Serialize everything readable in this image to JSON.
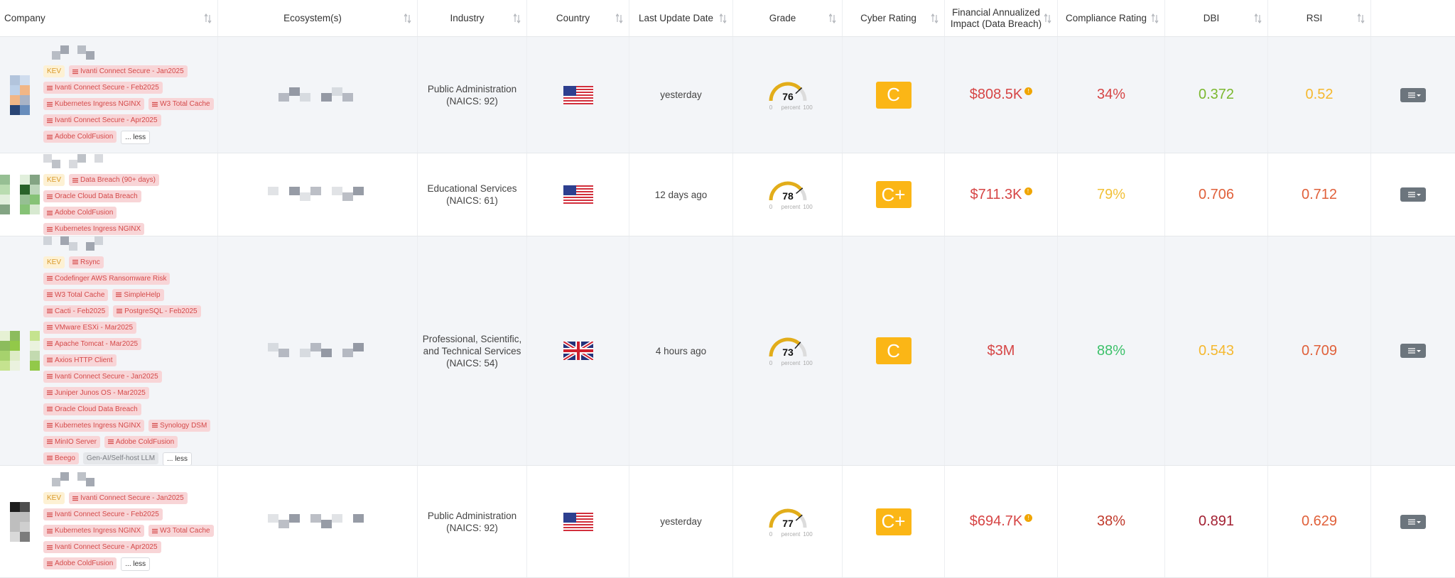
{
  "table": {
    "columns": [
      "Company",
      "Ecosystem(s)",
      "Industry",
      "Country",
      "Last Update Date",
      "Grade",
      "Cyber Rating",
      "Financial Annualized\nImpact (Data Breach)",
      "Compliance Rating",
      "DBI",
      "RSI"
    ],
    "gauge": {
      "min": 0,
      "unit": "percent",
      "max": 100
    },
    "rating_color": "#fbb616",
    "rows": [
      {
        "tags": [
          {
            "text": "KEV",
            "style": "kev"
          },
          {
            "text": "Ivanti Connect Secure - Jan2025",
            "style": "risk"
          },
          {
            "text": "Ivanti Connect Secure - Feb2025",
            "style": "risk"
          },
          {
            "text": "Kubernetes Ingress NGINX",
            "style": "risk"
          },
          {
            "text": "W3 Total Cache",
            "style": "risk"
          },
          {
            "text": "Ivanti Connect Secure - Apr2025",
            "style": "risk"
          },
          {
            "text": "Adobe ColdFusion",
            "style": "risk"
          }
        ],
        "toggle": "... less",
        "industry": "Public Administration\n(NAICS: 92)",
        "flag": "us",
        "updated": "yesterday",
        "grade": 76,
        "cyber": "C",
        "financial": {
          "text": "$808.5K",
          "color": "#d64545",
          "info": true
        },
        "compliance": {
          "text": "34%",
          "color": "#d64545"
        },
        "dbi": {
          "text": "0.372",
          "color": "#7cb82f"
        },
        "rsi": {
          "text": "0.52",
          "color": "#f5b82e"
        }
      },
      {
        "tags": [
          {
            "text": "KEV",
            "style": "kev"
          },
          {
            "text": "Data Breach (90+ days)",
            "style": "breach"
          },
          {
            "text": "Oracle Cloud Data Breach",
            "style": "risk"
          },
          {
            "text": "Adobe ColdFusion",
            "style": "risk"
          },
          {
            "text": "Kubernetes Ingress NGINX",
            "style": "risk"
          }
        ],
        "industry": "Educational Services\n(NAICS: 61)",
        "flag": "us",
        "updated": "12 days ago",
        "grade": 78,
        "cyber": "C+",
        "financial": {
          "text": "$711.3K",
          "color": "#d64545",
          "info": true
        },
        "compliance": {
          "text": "79%",
          "color": "#f2c037"
        },
        "dbi": {
          "text": "0.706",
          "color": "#e0603a"
        },
        "rsi": {
          "text": "0.712",
          "color": "#e0603a"
        }
      },
      {
        "tags": [
          {
            "text": "KEV",
            "style": "kev"
          },
          {
            "text": "Rsync",
            "style": "risk"
          },
          {
            "text": "Codefinger AWS Ransomware Risk",
            "style": "risk"
          },
          {
            "text": "W3 Total Cache",
            "style": "risk"
          },
          {
            "text": "SimpleHelp",
            "style": "risk"
          },
          {
            "text": "Cacti - Feb2025",
            "style": "risk"
          },
          {
            "text": "PostgreSQL - Feb2025",
            "style": "risk"
          },
          {
            "text": "VMware ESXi - Mar2025",
            "style": "risk"
          },
          {
            "text": "Apache Tomcat - Mar2025",
            "style": "risk"
          },
          {
            "text": "Axios HTTP Client",
            "style": "risk"
          },
          {
            "text": "Ivanti Connect Secure - Jan2025",
            "style": "risk"
          },
          {
            "text": "Juniper Junos OS - Mar2025",
            "style": "risk"
          },
          {
            "text": "Oracle Cloud Data Breach",
            "style": "risk"
          },
          {
            "text": "Kubernetes Ingress NGINX",
            "style": "risk"
          },
          {
            "text": "Synology DSM",
            "style": "risk"
          },
          {
            "text": "MinIO Server",
            "style": "risk"
          },
          {
            "text": "Adobe ColdFusion",
            "style": "risk"
          },
          {
            "text": "Beego",
            "style": "risk"
          },
          {
            "text": "Gen-AI/Self-host LLM",
            "style": "neutral"
          }
        ],
        "toggle": "... less",
        "industry": "Professional, Scientific,\nand Technical Services\n(NAICS: 54)",
        "flag": "gb",
        "updated": "4 hours ago",
        "grade": 73,
        "cyber": "C",
        "financial": {
          "text": "$3M",
          "color": "#d64545",
          "info": false
        },
        "compliance": {
          "text": "88%",
          "color": "#3cc16a"
        },
        "dbi": {
          "text": "0.543",
          "color": "#f5b82e"
        },
        "rsi": {
          "text": "0.709",
          "color": "#e0603a"
        }
      },
      {
        "tags": [
          {
            "text": "KEV",
            "style": "kev"
          },
          {
            "text": "Ivanti Connect Secure - Jan2025",
            "style": "risk"
          },
          {
            "text": "Ivanti Connect Secure - Feb2025",
            "style": "risk"
          },
          {
            "text": "Kubernetes Ingress NGINX",
            "style": "risk"
          },
          {
            "text": "W3 Total Cache",
            "style": "risk"
          },
          {
            "text": "Ivanti Connect Secure - Apr2025",
            "style": "risk"
          },
          {
            "text": "Adobe ColdFusion",
            "style": "risk"
          }
        ],
        "toggle": "... less",
        "industry": "Public Administration\n(NAICS: 92)",
        "flag": "us",
        "updated": "yesterday",
        "grade": 77,
        "cyber": "C+",
        "financial": {
          "text": "$694.7K",
          "color": "#d64545",
          "info": true
        },
        "compliance": {
          "text": "38%",
          "color": "#c0392b"
        },
        "dbi": {
          "text": "0.891",
          "color": "#a32032"
        },
        "rsi": {
          "text": "0.629",
          "color": "#e0603a"
        }
      }
    ]
  }
}
